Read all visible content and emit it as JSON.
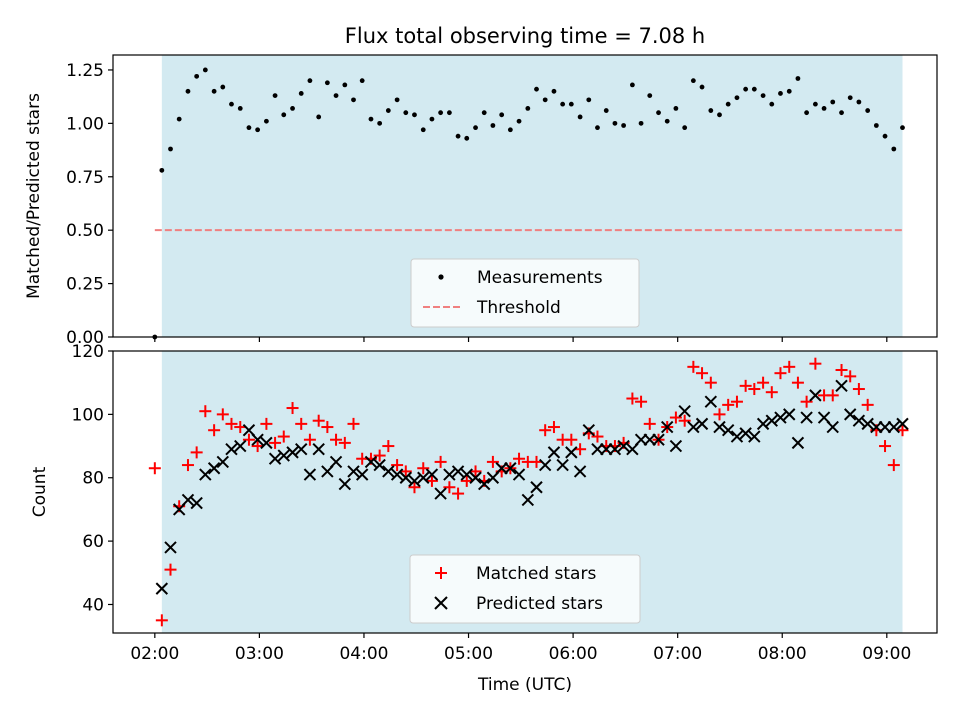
{
  "title": "Flux total observing time = 7.08 h",
  "colors": {
    "span": "#d3eaf1",
    "marker_black": "#000000",
    "matched": "#ff0000",
    "threshold": "#f08080"
  },
  "chart_data": [
    {
      "type": "scatter",
      "ylabel": "Matched/Predicted stars",
      "xlabel": "",
      "ylim": [
        0,
        1.32
      ],
      "xlim": [
        1.6,
        9.48
      ],
      "yticks": [
        0.0,
        0.25,
        0.5,
        0.75,
        1.0,
        1.25
      ],
      "ytick_labels": [
        "0.00",
        "0.25",
        "0.50",
        "0.75",
        "1.00",
        "1.25"
      ],
      "xticks": [
        2,
        3,
        4,
        5,
        6,
        7,
        8,
        9
      ],
      "shaded_span": [
        2.067,
        9.15
      ],
      "threshold": 0.5,
      "legend": {
        "placement": "lower center",
        "entries": [
          "Measurements",
          "Threshold"
        ]
      },
      "series": [
        {
          "name": "Measurements",
          "marker": "dot",
          "x": [
            2.0,
            2.067,
            2.15,
            2.233,
            2.317,
            2.4,
            2.483,
            2.567,
            2.65,
            2.733,
            2.817,
            2.9,
            2.983,
            3.067,
            3.15,
            3.233,
            3.317,
            3.4,
            3.483,
            3.567,
            3.65,
            3.733,
            3.817,
            3.9,
            3.983,
            4.067,
            4.15,
            4.233,
            4.317,
            4.4,
            4.483,
            4.567,
            4.65,
            4.733,
            4.817,
            4.9,
            4.983,
            5.067,
            5.15,
            5.233,
            5.317,
            5.4,
            5.483,
            5.567,
            5.65,
            5.733,
            5.817,
            5.9,
            5.983,
            6.067,
            6.15,
            6.233,
            6.317,
            6.4,
            6.483,
            6.567,
            6.65,
            6.733,
            6.817,
            6.9,
            6.983,
            7.067,
            7.15,
            7.233,
            7.317,
            7.4,
            7.483,
            7.567,
            7.65,
            7.733,
            7.817,
            7.9,
            7.983,
            8.067,
            8.15,
            8.233,
            8.317,
            8.4,
            8.483,
            8.567,
            8.65,
            8.733,
            8.817,
            8.9,
            8.983,
            9.067,
            9.15
          ],
          "y": [
            0.0,
            0.78,
            0.88,
            1.02,
            1.15,
            1.22,
            1.25,
            1.15,
            1.17,
            1.09,
            1.07,
            0.98,
            0.97,
            1.01,
            1.13,
            1.04,
            1.07,
            1.14,
            1.2,
            1.03,
            1.19,
            1.13,
            1.18,
            1.11,
            1.2,
            1.02,
            1.0,
            1.06,
            1.11,
            1.05,
            1.04,
            0.97,
            1.02,
            1.05,
            1.05,
            0.94,
            0.93,
            0.98,
            1.05,
            0.99,
            1.04,
            0.97,
            1.01,
            1.07,
            1.16,
            1.11,
            1.15,
            1.09,
            1.09,
            1.03,
            1.11,
            0.98,
            1.06,
            1.0,
            0.99,
            1.18,
            1.0,
            1.13,
            1.05,
            1.01,
            1.07,
            0.98,
            1.2,
            1.17,
            1.06,
            1.04,
            1.09,
            1.12,
            1.16,
            1.16,
            1.13,
            1.09,
            1.14,
            1.15,
            1.21,
            1.05,
            1.09,
            1.07,
            1.1,
            1.05,
            1.12,
            1.1,
            1.06,
            0.99,
            0.94,
            0.88,
            0.98
          ]
        }
      ]
    },
    {
      "type": "scatter",
      "ylabel": "Count",
      "xlabel": "Time (UTC)",
      "ylim": [
        31,
        120
      ],
      "xlim": [
        1.6,
        9.48
      ],
      "yticks": [
        40,
        60,
        80,
        100,
        120
      ],
      "ytick_labels": [
        "40",
        "60",
        "80",
        "100",
        "120"
      ],
      "xticks": [
        2,
        3,
        4,
        5,
        6,
        7,
        8,
        9
      ],
      "xtick_labels": [
        "02:00",
        "03:00",
        "04:00",
        "05:00",
        "06:00",
        "07:00",
        "08:00",
        "09:00"
      ],
      "shaded_span": [
        2.067,
        9.15
      ],
      "legend": {
        "placement": "lower center",
        "entries": [
          "Matched stars",
          "Predicted stars"
        ]
      },
      "series": [
        {
          "name": "Matched stars",
          "marker": "plus",
          "x": [
            2.0,
            2.067,
            2.15,
            2.233,
            2.317,
            2.4,
            2.483,
            2.567,
            2.65,
            2.733,
            2.817,
            2.9,
            2.983,
            3.067,
            3.15,
            3.233,
            3.317,
            3.4,
            3.483,
            3.567,
            3.65,
            3.733,
            3.817,
            3.9,
            3.983,
            4.067,
            4.15,
            4.233,
            4.317,
            4.4,
            4.483,
            4.567,
            4.65,
            4.733,
            4.817,
            4.9,
            4.983,
            5.067,
            5.15,
            5.233,
            5.317,
            5.4,
            5.483,
            5.567,
            5.65,
            5.733,
            5.817,
            5.9,
            5.983,
            6.067,
            6.15,
            6.233,
            6.317,
            6.4,
            6.483,
            6.567,
            6.65,
            6.733,
            6.817,
            6.9,
            6.983,
            7.067,
            7.15,
            7.233,
            7.317,
            7.4,
            7.483,
            7.567,
            7.65,
            7.733,
            7.817,
            7.9,
            7.983,
            8.067,
            8.15,
            8.233,
            8.317,
            8.4,
            8.483,
            8.567,
            8.65,
            8.733,
            8.817,
            8.9,
            8.983,
            9.067,
            9.15
          ],
          "y": [
            83,
            35,
            51,
            71,
            84,
            88,
            101,
            95,
            100,
            97,
            96,
            92,
            90,
            97,
            91,
            93,
            102,
            97,
            92,
            98,
            96,
            92,
            91,
            97,
            86,
            86,
            87,
            90,
            84,
            82,
            77,
            83,
            79,
            85,
            77,
            75,
            79,
            82,
            79,
            85,
            82,
            83,
            86,
            85,
            85,
            95,
            96,
            92,
            92,
            89,
            94,
            93,
            90,
            90,
            91,
            105,
            104,
            97,
            92,
            96,
            99,
            98,
            115,
            113,
            110,
            100,
            103,
            104,
            109,
            108,
            110,
            107,
            113,
            115,
            110,
            104,
            116,
            106,
            106,
            114,
            112,
            108,
            103,
            95,
            90,
            84,
            95
          ]
        },
        {
          "name": "Predicted stars",
          "marker": "x",
          "x": [
            2.067,
            2.15,
            2.233,
            2.317,
            2.4,
            2.483,
            2.567,
            2.65,
            2.733,
            2.817,
            2.9,
            2.983,
            3.067,
            3.15,
            3.233,
            3.317,
            3.4,
            3.483,
            3.567,
            3.65,
            3.733,
            3.817,
            3.9,
            3.983,
            4.067,
            4.15,
            4.233,
            4.317,
            4.4,
            4.483,
            4.567,
            4.65,
            4.733,
            4.817,
            4.9,
            4.983,
            5.067,
            5.15,
            5.233,
            5.317,
            5.4,
            5.483,
            5.567,
            5.65,
            5.733,
            5.817,
            5.9,
            5.983,
            6.067,
            6.15,
            6.233,
            6.317,
            6.4,
            6.483,
            6.567,
            6.65,
            6.733,
            6.817,
            6.9,
            6.983,
            7.067,
            7.15,
            7.233,
            7.317,
            7.4,
            7.483,
            7.567,
            7.65,
            7.733,
            7.817,
            7.9,
            7.983,
            8.067,
            8.15,
            8.233,
            8.317,
            8.4,
            8.483,
            8.567,
            8.65,
            8.733,
            8.817,
            8.9,
            8.983,
            9.067,
            9.15
          ],
          "y": [
            45,
            58,
            70,
            73,
            72,
            81,
            83,
            85,
            89,
            90,
            95,
            92,
            91,
            86,
            87,
            88,
            89,
            81,
            89,
            82,
            85,
            78,
            82,
            81,
            85,
            84,
            82,
            81,
            80,
            79,
            80,
            81,
            75,
            81,
            82,
            81,
            80,
            78,
            80,
            83,
            83,
            81,
            73,
            77,
            84,
            88,
            84,
            88,
            82,
            95,
            89,
            89,
            89,
            90,
            89,
            92,
            92,
            92,
            96,
            90,
            101,
            96,
            97,
            104,
            96,
            95,
            93,
            94,
            93,
            97,
            98,
            99,
            100,
            91,
            99,
            106,
            99,
            96,
            109,
            100,
            98,
            97,
            96,
            96,
            96,
            97
          ]
        }
      ]
    }
  ]
}
